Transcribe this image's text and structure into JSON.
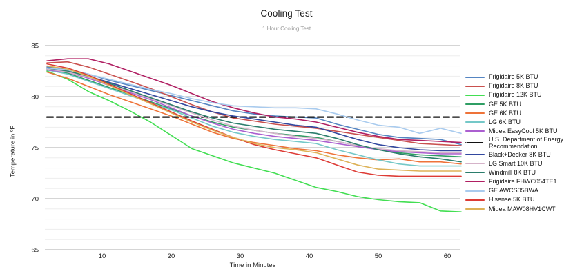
{
  "header": {
    "title": "Cooling Test",
    "subtitle": "1 Hour Cooling Test"
  },
  "chart_data": {
    "type": "line",
    "title": "Cooling Test",
    "subtitle": "1 Hour Cooling Test",
    "xlabel": "Time in Minutes",
    "ylabel": "Temperature in ºF",
    "xlim": [
      1.7,
      62
    ],
    "ylim": [
      65,
      85
    ],
    "xticks": [
      10,
      20,
      30,
      40,
      50,
      60
    ],
    "yticks": [
      65,
      70,
      75,
      80,
      85
    ],
    "grid": "major+minor-horizontal",
    "legend_position": "right",
    "x": [
      2,
      5,
      8,
      11,
      14,
      17,
      20,
      23,
      26,
      29,
      32,
      35,
      38,
      41,
      44,
      47,
      50,
      53,
      56,
      59,
      62
    ],
    "series": [
      {
        "name": "Frigidaire 5K BTU",
        "color": "#5585c2",
        "values": [
          82.9,
          82.7,
          82.2,
          81.6,
          81.1,
          80.6,
          80.1,
          79.6,
          79.1,
          78.6,
          78.3,
          78.1,
          78.0,
          77.9,
          77.3,
          76.8,
          76.3,
          76.0,
          75.9,
          75.8,
          75.3
        ]
      },
      {
        "name": "Frigidaire 8K BTU",
        "color": "#c9504e",
        "values": [
          83.3,
          83.4,
          82.9,
          82.2,
          81.5,
          80.8,
          80.0,
          79.2,
          78.5,
          77.9,
          77.6,
          77.3,
          77.1,
          76.9,
          76.6,
          76.3,
          76.0,
          75.7,
          75.4,
          75.3,
          75.2
        ]
      },
      {
        "name": "Frigidaire 12K BTU",
        "color": "#42de52",
        "values": [
          82.5,
          81.7,
          80.5,
          79.6,
          78.6,
          77.5,
          76.2,
          74.9,
          74.2,
          73.5,
          73.0,
          72.5,
          71.8,
          71.1,
          70.7,
          70.2,
          69.9,
          69.7,
          69.6,
          68.8,
          68.7
        ]
      },
      {
        "name": "GE 5K BTU",
        "color": "#2f9e64",
        "values": [
          82.6,
          82.3,
          81.6,
          80.9,
          80.2,
          79.5,
          78.8,
          78.1,
          77.5,
          77.0,
          76.7,
          76.4,
          76.2,
          76.0,
          75.6,
          75.2,
          74.8,
          74.5,
          74.3,
          74.2,
          74.1
        ]
      },
      {
        "name": "GE 6K BTU",
        "color": "#ee7339",
        "values": [
          82.4,
          81.8,
          81.0,
          80.2,
          79.5,
          78.8,
          78.1,
          77.3,
          76.5,
          75.9,
          75.5,
          75.2,
          74.9,
          74.7,
          74.3,
          74.0,
          73.8,
          73.9,
          73.6,
          73.6,
          73.4
        ]
      },
      {
        "name": "LG 6K BTU",
        "color": "#74c8c8",
        "values": [
          82.6,
          82.2,
          81.5,
          80.8,
          80.1,
          79.4,
          78.7,
          77.9,
          77.1,
          76.5,
          76.1,
          75.8,
          75.6,
          75.4,
          74.8,
          74.3,
          73.8,
          73.4,
          73.2,
          73.2,
          73.2
        ]
      },
      {
        "name": "Midea EasyCool 5K BTU",
        "color": "#ab5fd0",
        "values": [
          82.6,
          82.4,
          81.8,
          81.1,
          80.4,
          79.7,
          78.9,
          78.1,
          77.4,
          76.8,
          76.4,
          76.1,
          75.9,
          75.7,
          75.4,
          75.1,
          74.8,
          74.6,
          74.5,
          74.4,
          74.4
        ]
      },
      {
        "name": "U.S. Department of Energy Recommendation",
        "color": "#111111",
        "dash": true,
        "values": [
          78,
          78,
          78,
          78,
          78,
          78,
          78,
          78,
          78,
          78,
          78,
          78,
          78,
          78,
          78,
          78,
          78,
          78,
          78,
          78,
          78
        ]
      },
      {
        "name": "Black+Decker 8K BTU",
        "color": "#32489f",
        "values": [
          82.7,
          82.5,
          82.0,
          81.4,
          80.8,
          80.2,
          79.6,
          79.0,
          78.5,
          78.1,
          77.8,
          77.5,
          77.2,
          77.0,
          76.4,
          75.8,
          75.3,
          75.0,
          74.8,
          74.7,
          74.7
        ]
      },
      {
        "name": "LG Smart 10K BTU",
        "color": "#d5b3c9",
        "values": [
          82.7,
          82.4,
          81.9,
          81.2,
          80.5,
          79.8,
          79.1,
          78.4,
          77.7,
          77.1,
          76.7,
          76.4,
          76.1,
          75.9,
          75.6,
          75.2,
          74.9,
          74.7,
          74.6,
          74.5,
          74.5
        ]
      },
      {
        "name": "Windmill 8K BTU",
        "color": "#2b7d6c",
        "values": [
          82.8,
          82.5,
          82.0,
          81.3,
          80.6,
          79.9,
          79.2,
          78.5,
          77.9,
          77.4,
          77.1,
          76.8,
          76.6,
          76.4,
          75.9,
          75.3,
          74.8,
          74.4,
          74.1,
          73.9,
          73.6
        ]
      },
      {
        "name": "Frigidaire FHWC054TE1",
        "color": "#b01f62",
        "values": [
          83.5,
          83.7,
          83.7,
          83.2,
          82.5,
          81.8,
          81.1,
          80.3,
          79.5,
          78.9,
          78.4,
          78.0,
          77.8,
          77.5,
          77.0,
          76.5,
          76.1,
          75.8,
          75.7,
          75.6,
          75.5
        ]
      },
      {
        "name": "GE AWCS05BWA",
        "color": "#a9cbee",
        "values": [
          82.8,
          82.6,
          82.2,
          81.7,
          81.2,
          80.7,
          80.3,
          79.8,
          79.4,
          79.1,
          79.0,
          78.9,
          78.9,
          78.8,
          78.3,
          77.7,
          77.2,
          77.0,
          76.4,
          76.9,
          76.4
        ]
      },
      {
        "name": "Hisense 5K BTU",
        "color": "#dd3b35",
        "values": [
          83.2,
          82.8,
          82.1,
          81.2,
          80.3,
          79.4,
          78.5,
          77.6,
          76.8,
          76.0,
          75.3,
          74.8,
          74.4,
          74.0,
          73.3,
          72.6,
          72.3,
          72.2,
          72.2,
          72.2,
          72.2
        ]
      },
      {
        "name": "Midea MAW08HV1CWT",
        "color": "#ddb257",
        "values": [
          83.0,
          82.7,
          82.0,
          81.1,
          80.2,
          79.3,
          78.4,
          77.5,
          76.7,
          76.0,
          75.4,
          75.0,
          74.8,
          74.5,
          73.9,
          73.3,
          72.9,
          72.8,
          72.7,
          72.7,
          72.7
        ]
      }
    ]
  },
  "style": {
    "grid_major_color": "#ababab",
    "grid_minor_color": "#ededed",
    "tick_color": "#222222"
  }
}
